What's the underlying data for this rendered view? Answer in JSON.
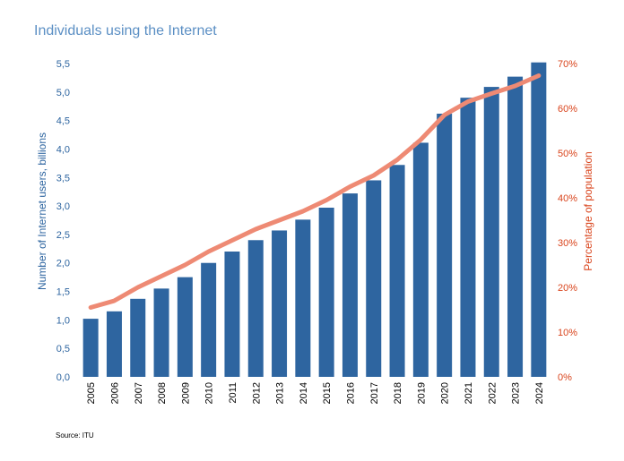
{
  "chart_data": {
    "type": "bar",
    "title": "Individuals using the Internet",
    "categories": [
      "2005",
      "2006",
      "2007",
      "2008",
      "2009",
      "2010",
      "2011",
      "2012",
      "2013",
      "2014",
      "2015",
      "2016",
      "2017",
      "2018",
      "2019",
      "2020",
      "2021",
      "2022",
      "2023",
      "2024"
    ],
    "series": [
      {
        "name": "Number of Internet users, billions",
        "type": "bar",
        "axis": "left",
        "color": "#2e65a0",
        "values": [
          1.02,
          1.15,
          1.37,
          1.55,
          1.75,
          2.0,
          2.2,
          2.4,
          2.57,
          2.76,
          2.97,
          3.22,
          3.45,
          3.72,
          4.11,
          4.62,
          4.9,
          5.09,
          5.27,
          5.52
        ]
      },
      {
        "name": "Percentage of population",
        "type": "line",
        "axis": "right",
        "color": "#ee8a74",
        "values": [
          15.5,
          17.0,
          20.0,
          22.5,
          25.0,
          28.0,
          30.5,
          33.0,
          35.0,
          37.0,
          39.5,
          42.5,
          45.0,
          48.5,
          53.0,
          58.5,
          61.5,
          63.3,
          65.0,
          67.3
        ]
      }
    ],
    "yleft": {
      "label": "Number of Internet users, billions",
      "ylim": [
        0,
        5.5
      ],
      "ticks": [
        "0,0",
        "0,5",
        "1,0",
        "1,5",
        "2,0",
        "2,5",
        "3,0",
        "3,5",
        "4,0",
        "4,5",
        "5,0",
        "5,5"
      ],
      "color": "#2e65a0"
    },
    "yright": {
      "label": "Percentage of population",
      "ylim": [
        0,
        70
      ],
      "ticks": [
        "0%",
        "10%",
        "20%",
        "30%",
        "40%",
        "50%",
        "60%",
        "70%"
      ],
      "color": "#d9441c"
    },
    "grid": false,
    "legend": "none",
    "source": "Source: ITU"
  }
}
